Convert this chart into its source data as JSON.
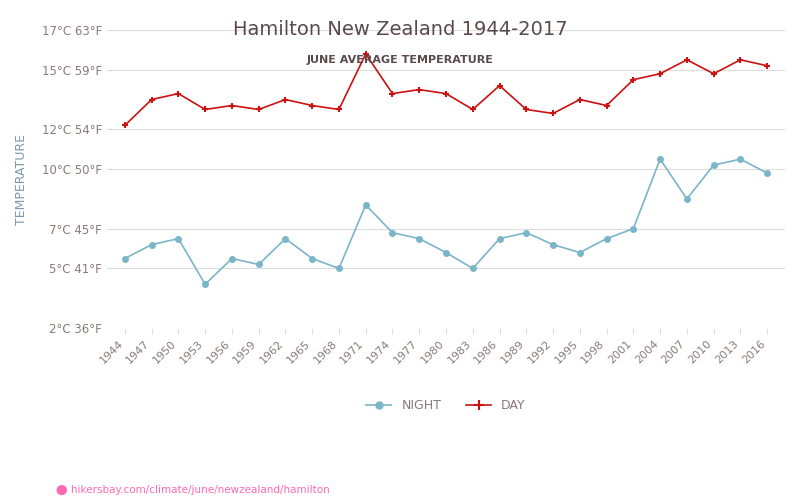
{
  "title": "Hamilton New Zealand 1944-2017",
  "subtitle": "JUNE AVERAGE TEMPERATURE",
  "xlabel": "",
  "ylabel": "TEMPERATURE",
  "background_color": "#ffffff",
  "title_color": "#5a4a4a",
  "subtitle_color": "#5a4a4a",
  "ylabel_color": "#7a9ab0",
  "axis_label_color": "#8a7a7a",
  "grid_color": "#dddddd",
  "url_text": "hikersbay.com/climate/june/newzealand/hamilton",
  "url_color": "#ff69b4",
  "years": [
    1944,
    1947,
    1950,
    1953,
    1956,
    1959,
    1962,
    1965,
    1968,
    1971,
    1974,
    1977,
    1980,
    1983,
    1986,
    1989,
    1992,
    1995,
    1998,
    2001,
    2004,
    2007,
    2010,
    2013,
    2016
  ],
  "day_temps": [
    12.2,
    13.5,
    13.8,
    13.0,
    13.2,
    13.0,
    13.5,
    13.2,
    13.0,
    15.8,
    13.8,
    14.0,
    13.8,
    13.0,
    14.2,
    13.0,
    12.8,
    13.5,
    13.2,
    14.5,
    14.8,
    15.5,
    14.8,
    15.5,
    15.2
  ],
  "night_temps": [
    5.5,
    6.2,
    6.5,
    4.2,
    5.5,
    5.2,
    6.5,
    5.5,
    5.0,
    8.2,
    6.8,
    6.5,
    5.8,
    5.0,
    6.5,
    6.8,
    6.2,
    5.8,
    6.5,
    7.0,
    10.5,
    8.5,
    10.2,
    10.5,
    9.8
  ],
  "day_color": "#cc1111",
  "night_color": "#7ab5c8",
  "day_marker": "+",
  "night_marker": "o",
  "ylim_min": 2,
  "ylim_max": 17,
  "yticks_c": [
    2,
    5,
    7,
    10,
    12,
    15,
    17
  ],
  "yticks_f": [
    36,
    41,
    45,
    50,
    54,
    59,
    63
  ],
  "legend_night": "NIGHT",
  "legend_day": "DAY"
}
